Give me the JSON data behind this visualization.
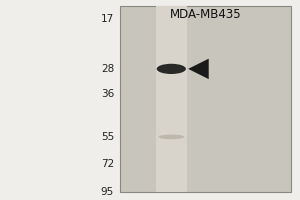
{
  "title": "MDA-MB435",
  "mw_markers": [
    95,
    72,
    55,
    36,
    28,
    17
  ],
  "band_main_mw": 28,
  "band_faint_mw": 55,
  "outer_bg": "#f0eeea",
  "gel_bg": "#c8c5bc",
  "lane_color": "#d8d4cc",
  "band_color": "#1a1a1a",
  "faint_band_color": "#aaa090",
  "arrow_color": "#1a1a1a",
  "border_color": "#888880",
  "title_fontsize": 8.5,
  "marker_fontsize": 7.5,
  "fig_width": 3.0,
  "fig_height": 2.0,
  "dpi": 100,
  "log_min": 1.176,
  "log_max": 1.978
}
